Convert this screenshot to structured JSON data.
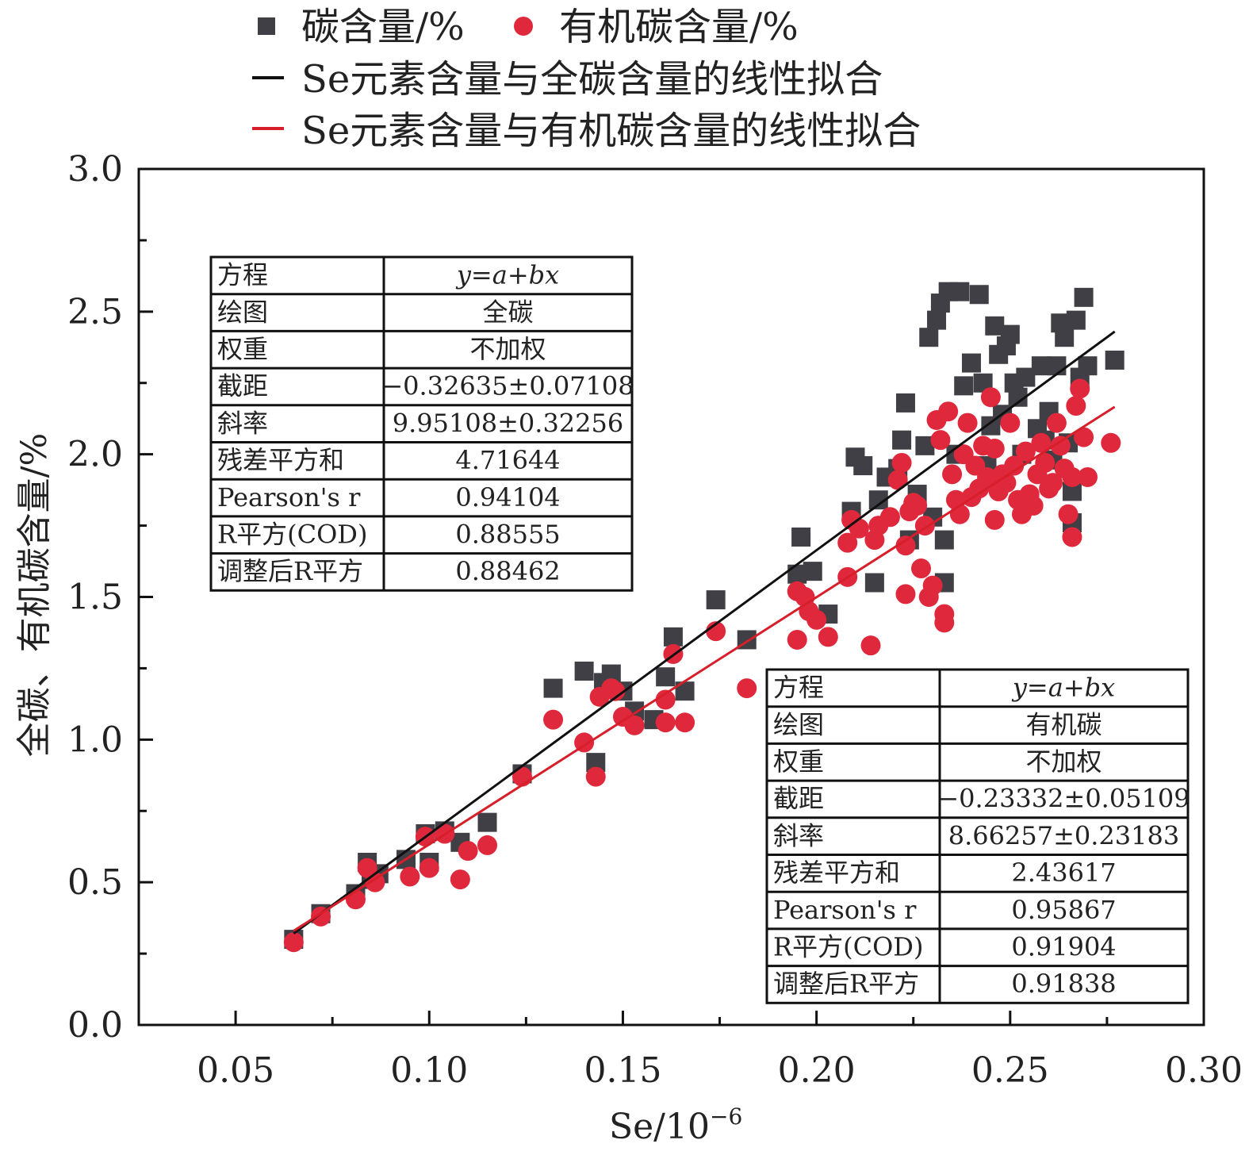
{
  "legend": {
    "total_carbon": "碳含量/%",
    "organic_carbon": "有机碳含量/%",
    "fit_total": "Se元素含量与全碳含量的线性拟合",
    "fit_organic": "Se元素含量与有机碳含量的线性拟合"
  },
  "colors": {
    "total_carbon": "#3f3f45",
    "organic_carbon": "#e0283c",
    "fit_total": "#111111",
    "fit_organic": "#d61f2a"
  },
  "chart_data": {
    "type": "scatter",
    "xlabel_main": "Se/10",
    "xlabel_exp": "−6",
    "ylabel": "全碳、有机碳含量/%",
    "xlim": [
      0.025,
      0.3
    ],
    "ylim": [
      0.0,
      3.0
    ],
    "xticks": [
      "0.05",
      "0.10",
      "0.15",
      "0.20",
      "0.25",
      "0.30"
    ],
    "yticks": [
      "0.0",
      "0.5",
      "1.0",
      "1.5",
      "2.0",
      "2.5",
      "3.0"
    ],
    "series": [
      {
        "name": "碳含量/%",
        "marker": "square",
        "points": [
          [
            0.065,
            0.3
          ],
          [
            0.072,
            0.39
          ],
          [
            0.081,
            0.46
          ],
          [
            0.084,
            0.57
          ],
          [
            0.085,
            0.51
          ],
          [
            0.087,
            0.53
          ],
          [
            0.094,
            0.58
          ],
          [
            0.099,
            0.67
          ],
          [
            0.1,
            0.57
          ],
          [
            0.104,
            0.68
          ],
          [
            0.108,
            0.64
          ],
          [
            0.115,
            0.71
          ],
          [
            0.124,
            0.88
          ],
          [
            0.132,
            1.18
          ],
          [
            0.14,
            1.24
          ],
          [
            0.143,
            0.92
          ],
          [
            0.145,
            1.2
          ],
          [
            0.147,
            1.23
          ],
          [
            0.15,
            1.17
          ],
          [
            0.153,
            1.1
          ],
          [
            0.158,
            1.07
          ],
          [
            0.161,
            1.22
          ],
          [
            0.163,
            1.36
          ],
          [
            0.166,
            1.17
          ],
          [
            0.174,
            1.49
          ],
          [
            0.182,
            1.35
          ],
          [
            0.196,
            1.71
          ],
          [
            0.195,
            1.58
          ],
          [
            0.199,
            1.59
          ],
          [
            0.203,
            1.44
          ],
          [
            0.209,
            1.8
          ],
          [
            0.21,
            1.99
          ],
          [
            0.212,
            1.96
          ],
          [
            0.215,
            1.55
          ],
          [
            0.216,
            1.84
          ],
          [
            0.218,
            1.92
          ],
          [
            0.221,
            1.95
          ],
          [
            0.222,
            2.05
          ],
          [
            0.223,
            2.18
          ],
          [
            0.224,
            1.7
          ],
          [
            0.226,
            1.86
          ],
          [
            0.228,
            2.03
          ],
          [
            0.229,
            2.41
          ],
          [
            0.23,
            1.78
          ],
          [
            0.231,
            2.47
          ],
          [
            0.232,
            2.53
          ],
          [
            0.233,
            1.55
          ],
          [
            0.233,
            1.7
          ],
          [
            0.234,
            2.57
          ],
          [
            0.236,
            2.0
          ],
          [
            0.237,
            2.57
          ],
          [
            0.238,
            2.24
          ],
          [
            0.24,
            2.32
          ],
          [
            0.242,
            2.56
          ],
          [
            0.243,
            2.25
          ],
          [
            0.244,
            1.96
          ],
          [
            0.245,
            2.1
          ],
          [
            0.246,
            2.45
          ],
          [
            0.247,
            2.35
          ],
          [
            0.248,
            2.14
          ],
          [
            0.249,
            2.38
          ],
          [
            0.25,
            2.42
          ],
          [
            0.251,
            2.25
          ],
          [
            0.252,
            2.2
          ],
          [
            0.253,
            2.0
          ],
          [
            0.254,
            2.27
          ],
          [
            0.255,
            1.83
          ],
          [
            0.257,
            2.09
          ],
          [
            0.258,
            2.31
          ],
          [
            0.259,
            2.05
          ],
          [
            0.26,
            2.15
          ],
          [
            0.261,
            1.98
          ],
          [
            0.262,
            2.31
          ],
          [
            0.263,
            2.46
          ],
          [
            0.264,
            2.41
          ],
          [
            0.265,
            2.04
          ],
          [
            0.266,
            1.87
          ],
          [
            0.266,
            1.76
          ],
          [
            0.267,
            2.47
          ],
          [
            0.268,
            2.27
          ],
          [
            0.269,
            2.55
          ],
          [
            0.27,
            2.31
          ],
          [
            0.277,
            2.33
          ]
        ]
      },
      {
        "name": "有机碳含量/%",
        "marker": "circle",
        "points": [
          [
            0.065,
            0.29
          ],
          [
            0.072,
            0.38
          ],
          [
            0.081,
            0.44
          ],
          [
            0.084,
            0.55
          ],
          [
            0.086,
            0.5
          ],
          [
            0.095,
            0.52
          ],
          [
            0.099,
            0.66
          ],
          [
            0.1,
            0.55
          ],
          [
            0.104,
            0.67
          ],
          [
            0.108,
            0.51
          ],
          [
            0.11,
            0.61
          ],
          [
            0.115,
            0.63
          ],
          [
            0.124,
            0.87
          ],
          [
            0.132,
            1.07
          ],
          [
            0.14,
            0.99
          ],
          [
            0.143,
            0.87
          ],
          [
            0.144,
            1.15
          ],
          [
            0.147,
            1.18
          ],
          [
            0.148,
            1.17
          ],
          [
            0.15,
            1.08
          ],
          [
            0.153,
            1.05
          ],
          [
            0.161,
            1.06
          ],
          [
            0.161,
            1.14
          ],
          [
            0.163,
            1.3
          ],
          [
            0.166,
            1.06
          ],
          [
            0.174,
            1.38
          ],
          [
            0.182,
            1.18
          ],
          [
            0.195,
            1.52
          ],
          [
            0.195,
            1.35
          ],
          [
            0.197,
            1.5
          ],
          [
            0.198,
            1.45
          ],
          [
            0.2,
            1.42
          ],
          [
            0.203,
            1.36
          ],
          [
            0.208,
            1.57
          ],
          [
            0.208,
            1.69
          ],
          [
            0.209,
            1.77
          ],
          [
            0.211,
            1.74
          ],
          [
            0.214,
            1.33
          ],
          [
            0.215,
            1.7
          ],
          [
            0.216,
            1.75
          ],
          [
            0.219,
            1.78
          ],
          [
            0.221,
            1.91
          ],
          [
            0.222,
            1.97
          ],
          [
            0.223,
            1.68
          ],
          [
            0.223,
            1.51
          ],
          [
            0.224,
            1.8
          ],
          [
            0.225,
            1.83
          ],
          [
            0.226,
            1.82
          ],
          [
            0.227,
            1.6
          ],
          [
            0.228,
            1.75
          ],
          [
            0.229,
            1.5
          ],
          [
            0.23,
            1.54
          ],
          [
            0.231,
            2.12
          ],
          [
            0.232,
            2.05
          ],
          [
            0.233,
            1.41
          ],
          [
            0.233,
            1.44
          ],
          [
            0.234,
            2.15
          ],
          [
            0.235,
            1.93
          ],
          [
            0.236,
            1.84
          ],
          [
            0.237,
            1.79
          ],
          [
            0.238,
            2.0
          ],
          [
            0.239,
            2.11
          ],
          [
            0.24,
            1.85
          ],
          [
            0.241,
            1.96
          ],
          [
            0.242,
            1.88
          ],
          [
            0.243,
            2.03
          ],
          [
            0.244,
            1.92
          ],
          [
            0.245,
            2.2
          ],
          [
            0.246,
            1.77
          ],
          [
            0.246,
            2.02
          ],
          [
            0.247,
            1.87
          ],
          [
            0.248,
            1.93
          ],
          [
            0.249,
            1.9
          ],
          [
            0.25,
            2.11
          ],
          [
            0.251,
            1.96
          ],
          [
            0.252,
            1.84
          ],
          [
            0.253,
            1.79
          ],
          [
            0.254,
            2.01
          ],
          [
            0.255,
            1.86
          ],
          [
            0.256,
            1.82
          ],
          [
            0.257,
            1.93
          ],
          [
            0.258,
            2.04
          ],
          [
            0.259,
            1.97
          ],
          [
            0.26,
            1.88
          ],
          [
            0.261,
            1.9
          ],
          [
            0.262,
            2.11
          ],
          [
            0.263,
            2.03
          ],
          [
            0.264,
            1.95
          ],
          [
            0.265,
            1.79
          ],
          [
            0.266,
            1.71
          ],
          [
            0.266,
            1.92
          ],
          [
            0.267,
            2.17
          ],
          [
            0.268,
            2.23
          ],
          [
            0.269,
            2.06
          ],
          [
            0.27,
            1.92
          ],
          [
            0.276,
            2.04
          ]
        ]
      }
    ],
    "fits": [
      {
        "name": "Se元素含量与全碳含量的线性拟合",
        "intercept": -0.32635,
        "slope": 9.95108,
        "x_range": [
          0.065,
          0.277
        ]
      },
      {
        "name": "Se元素含量与有机碳含量的线性拟合",
        "intercept": -0.23332,
        "slope": 8.66257,
        "x_range": [
          0.065,
          0.277
        ]
      }
    ]
  },
  "tables": [
    {
      "rows": [
        [
          "方程",
          "y=a+bx"
        ],
        [
          "绘图",
          "全碳"
        ],
        [
          "权重",
          "不加权"
        ],
        [
          "截距",
          "−0.32635±0.07108"
        ],
        [
          "斜率",
          "9.95108±0.32256"
        ],
        [
          "残差平方和",
          "4.71644"
        ],
        [
          "Pearson's r",
          "0.94104"
        ],
        [
          "R平方(COD)",
          "0.88555"
        ],
        [
          "调整后R平方",
          "0.88462"
        ]
      ]
    },
    {
      "rows": [
        [
          "方程",
          "y=a+bx"
        ],
        [
          "绘图",
          "有机碳"
        ],
        [
          "权重",
          "不加权"
        ],
        [
          "截距",
          "−0.23332±0.05109"
        ],
        [
          "斜率",
          "8.66257±0.23183"
        ],
        [
          "残差平方和",
          "2.43617"
        ],
        [
          "Pearson's r",
          "0.95867"
        ],
        [
          "R平方(COD)",
          "0.91904"
        ],
        [
          "调整后R平方",
          "0.91838"
        ]
      ]
    }
  ]
}
